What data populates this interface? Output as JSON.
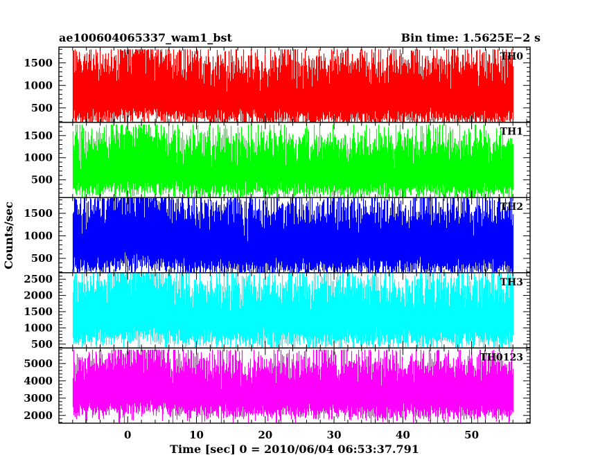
{
  "header": {
    "left": "ae100604065337_wam1_bst",
    "right": "Bin time: 1.5625E−2 s"
  },
  "chart_data": {
    "type": "line",
    "title": "ae100604065337_wam1_bst",
    "subtitle": "Bin time: 1.5625E−2 s",
    "xlabel": "Time [sec] 0 = 2010/06/04 06:53:37.791",
    "ylabel": "Counts/sec",
    "xlim": [
      -10,
      58.5
    ],
    "data_xrange": [
      -8,
      56
    ],
    "x_ticks": [
      0,
      10,
      20,
      30,
      40,
      50
    ],
    "x_tick_labels": [
      "0",
      "10",
      "20",
      "30",
      "40",
      "50"
    ],
    "grid": false,
    "legend": "none",
    "panels": [
      {
        "name": "TH0",
        "color": "#ff0000",
        "ylim": [
          180,
          1850
        ],
        "y_ticks": [
          500,
          1000,
          1500
        ],
        "y_tick_labels": [
          "500",
          "1000",
          "1500"
        ],
        "mean": 850,
        "low_envelope": 250,
        "high_envelope": 1500,
        "peak_max": 1800,
        "burst_peak_time": 2
      },
      {
        "name": "TH1",
        "color": "#00ff00",
        "ylim": [
          100,
          1800
        ],
        "y_ticks": [
          500,
          1000,
          1500
        ],
        "y_tick_labels": [
          "500",
          "1000",
          "1500"
        ],
        "mean": 780,
        "low_envelope": 220,
        "high_envelope": 1350,
        "peak_max": 1750,
        "burst_peak_time": 2
      },
      {
        "name": "TH2",
        "color": "#0000ff",
        "ylim": [
          180,
          1850
        ],
        "y_ticks": [
          500,
          1000,
          1500
        ],
        "y_tick_labels": [
          "500",
          "1000",
          "1500"
        ],
        "mean": 880,
        "low_envelope": 260,
        "high_envelope": 1600,
        "peak_max": 1850,
        "burst_peak_time": 2
      },
      {
        "name": "TH3",
        "color": "#00ffff",
        "ylim": [
          380,
          2700
        ],
        "y_ticks": [
          500,
          1000,
          1500,
          2000,
          2500
        ],
        "y_tick_labels": [
          "500",
          "1000",
          "1500",
          "2000",
          "2500"
        ],
        "mean": 1400,
        "low_envelope": 600,
        "high_envelope": 2300,
        "peak_max": 2700,
        "burst_peak_time": 2
      },
      {
        "name": "TH0123",
        "color": "#ff00ff",
        "ylim": [
          1550,
          5900
        ],
        "y_ticks": [
          2000,
          3000,
          4000,
          5000
        ],
        "y_tick_labels": [
          "2000",
          "3000",
          "4000",
          "5000"
        ],
        "mean": 3600,
        "low_envelope": 2100,
        "high_envelope": 5000,
        "peak_max": 5800,
        "burst_peak_time": 2
      }
    ]
  }
}
